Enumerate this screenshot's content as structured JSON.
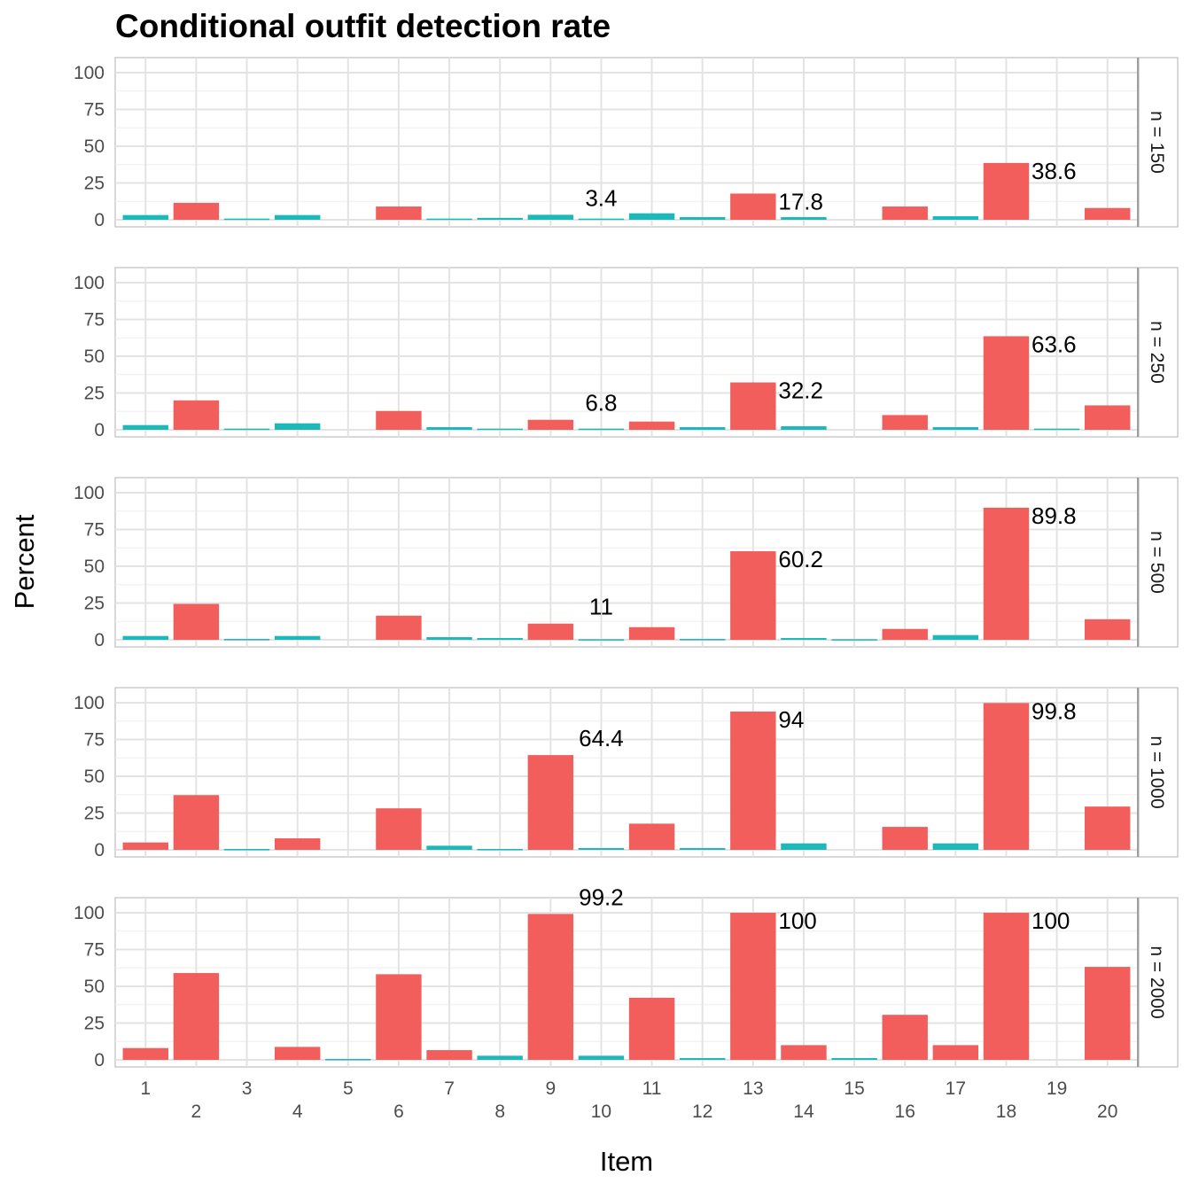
{
  "chart_data": {
    "type": "bar",
    "title": "Conditional outfit detection rate",
    "xlabel": "Item",
    "ylabel": "Percent",
    "ylim": [
      0,
      100
    ],
    "yticks": [
      0,
      25,
      50,
      75,
      100
    ],
    "grid": true,
    "legend": "none",
    "colors": {
      "high": "#F15E5B",
      "low": "#1DB9B9"
    },
    "categories": [
      "1",
      "2",
      "3",
      "4",
      "5",
      "6",
      "7",
      "8",
      "9",
      "10",
      "11",
      "12",
      "13",
      "14",
      "15",
      "16",
      "17",
      "18",
      "19",
      "20"
    ],
    "facets": [
      {
        "label": "n = 150",
        "values": [
          3.2,
          11.5,
          0.8,
          3.2,
          0,
          9.0,
          0.8,
          1.3,
          3.4,
          0.8,
          4.4,
          1.8,
          17.8,
          1.8,
          0,
          9.0,
          2.4,
          38.6,
          0,
          8.0
        ],
        "groups": [
          "low",
          "high",
          "low",
          "low",
          "low",
          "high",
          "low",
          "low",
          "low",
          "low",
          "low",
          "low",
          "high",
          "low",
          "low",
          "high",
          "low",
          "high",
          "low",
          "high"
        ],
        "labels": [
          {
            "index": 8,
            "text": "3.4"
          },
          {
            "index": 12,
            "text": "17.8"
          },
          {
            "index": 17,
            "text": "38.6"
          }
        ]
      },
      {
        "label": "n = 250",
        "values": [
          3.2,
          20.0,
          0.8,
          4.4,
          0,
          12.8,
          1.8,
          0.8,
          6.8,
          0.8,
          5.6,
          1.8,
          32.2,
          2.4,
          0,
          10.0,
          1.8,
          63.6,
          0.8,
          16.6
        ],
        "groups": [
          "low",
          "high",
          "low",
          "low",
          "low",
          "high",
          "low",
          "low",
          "high",
          "low",
          "high",
          "low",
          "high",
          "low",
          "low",
          "high",
          "low",
          "high",
          "low",
          "high"
        ],
        "labels": [
          {
            "index": 8,
            "text": "6.8"
          },
          {
            "index": 12,
            "text": "32.2"
          },
          {
            "index": 17,
            "text": "63.6"
          }
        ]
      },
      {
        "label": "n = 500",
        "values": [
          2.6,
          24.4,
          0.6,
          2.6,
          0,
          16.4,
          1.8,
          1.2,
          11.0,
          0.4,
          8.6,
          0.6,
          60.2,
          1.2,
          0.4,
          7.4,
          3.2,
          89.8,
          0,
          14.0
        ],
        "groups": [
          "low",
          "high",
          "low",
          "low",
          "low",
          "high",
          "low",
          "low",
          "high",
          "low",
          "high",
          "low",
          "high",
          "low",
          "low",
          "high",
          "low",
          "high",
          "low",
          "high"
        ],
        "labels": [
          {
            "index": 8,
            "text": "11"
          },
          {
            "index": 12,
            "text": "60.2"
          },
          {
            "index": 17,
            "text": "89.8"
          }
        ]
      },
      {
        "label": "n = 1000",
        "values": [
          5.0,
          37.2,
          0.6,
          7.8,
          0,
          28.2,
          2.8,
          0.6,
          64.4,
          1.2,
          17.8,
          1.2,
          94.0,
          4.4,
          0,
          15.6,
          4.4,
          99.8,
          0,
          29.4
        ],
        "groups": [
          "high",
          "high",
          "low",
          "high",
          "low",
          "high",
          "low",
          "low",
          "high",
          "low",
          "high",
          "low",
          "high",
          "low",
          "low",
          "high",
          "low",
          "high",
          "low",
          "high"
        ],
        "labels": [
          {
            "index": 8,
            "text": "64.4"
          },
          {
            "index": 12,
            "text": "94"
          },
          {
            "index": 17,
            "text": "99.8"
          }
        ]
      },
      {
        "label": "n = 2000",
        "values": [
          8.0,
          59.0,
          0,
          8.8,
          0.6,
          58.2,
          6.6,
          2.8,
          99.2,
          2.8,
          42.2,
          1.2,
          100,
          10.0,
          1.2,
          30.6,
          10.0,
          100,
          0,
          63.2
        ],
        "groups": [
          "high",
          "high",
          "low",
          "high",
          "low",
          "high",
          "high",
          "low",
          "high",
          "low",
          "high",
          "low",
          "high",
          "high",
          "low",
          "high",
          "high",
          "high",
          "low",
          "high"
        ],
        "labels": [
          {
            "index": 8,
            "text": "99.2"
          },
          {
            "index": 12,
            "text": "100"
          },
          {
            "index": 17,
            "text": "100"
          }
        ]
      }
    ]
  }
}
